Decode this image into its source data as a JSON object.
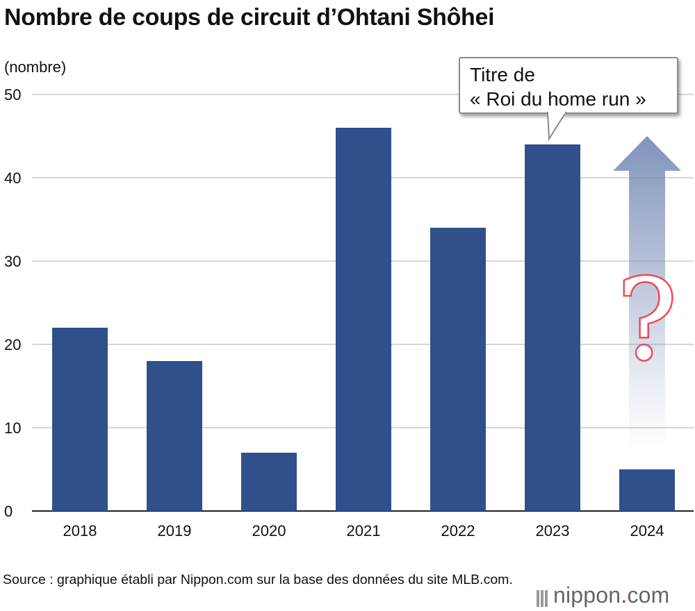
{
  "title": "Nombre de coups de circuit d’Ohtani Shôhei",
  "unit_label": "(nombre)",
  "callout": {
    "line1": "Titre de",
    "line2": "« Roi du home run »"
  },
  "annotation": {
    "symbol": "?",
    "color": "#ef4a54"
  },
  "source": "Source : graphique établi par Nippon.com sur la base des données du site MLB.com.",
  "logo": {
    "name": "nippon",
    "dot": ".",
    "suffix": "com"
  },
  "colors": {
    "bar": "#30508c",
    "grid": "#c8c8c8",
    "arrow": "#7f93bb"
  },
  "chart_data": {
    "type": "bar",
    "title": "Nombre de coups de circuit d’Ohtani Shôhei",
    "ylabel": "(nombre)",
    "xlabel": "",
    "categories": [
      "2018",
      "2019",
      "2020",
      "2021",
      "2022",
      "2023",
      "2024"
    ],
    "values": [
      22,
      18,
      7,
      46,
      34,
      44,
      5
    ],
    "ylim": [
      0,
      50
    ],
    "yticks": [
      0,
      10,
      20,
      30,
      40,
      50
    ],
    "grid": true
  }
}
